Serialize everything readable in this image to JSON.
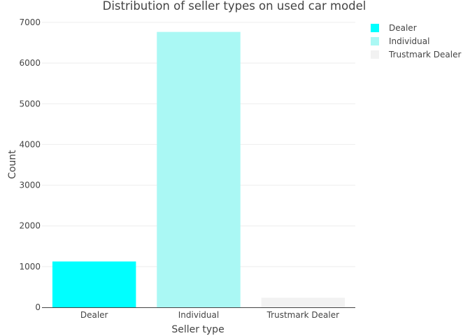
{
  "chart_data": {
    "type": "bar",
    "title": "Distribution of seller types on used car model",
    "xlabel": "Seller type",
    "ylabel": "Count",
    "categories": [
      "Dealer",
      "Individual",
      "Trustmark Dealer"
    ],
    "values": [
      1126,
      6766,
      236
    ],
    "colors": [
      "#00ffff",
      "#aaf8f4",
      "#f2f2f2"
    ],
    "ylim": [
      0,
      7000
    ],
    "yticks": [
      0,
      1000,
      2000,
      3000,
      4000,
      5000,
      6000,
      7000
    ],
    "grid": true,
    "legend": {
      "position": "top-right",
      "entries": [
        "Dealer",
        "Individual",
        "Trustmark Dealer"
      ]
    }
  }
}
